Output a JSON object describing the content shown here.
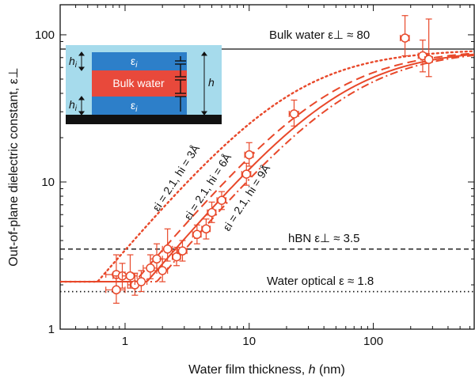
{
  "chart_data": {
    "type": "scatter",
    "title": "",
    "xlabel_prefix": "Water film thickness, ",
    "xlabel_var": "h",
    "xlabel_unit": " (nm)",
    "ylabel": "Out-of-plane dielectric constant, ε⊥",
    "x_scale": "log",
    "y_scale": "log",
    "xlim": [
      0.3,
      650
    ],
    "ylim": [
      1,
      160
    ],
    "x_ticks": [
      {
        "value": 1,
        "label": "1"
      },
      {
        "value": 10,
        "label": "10"
      },
      {
        "value": 100,
        "label": "100"
      }
    ],
    "y_ticks": [
      {
        "value": 1,
        "label": "1"
      },
      {
        "value": 10,
        "label": "10"
      },
      {
        "value": 100,
        "label": "100"
      }
    ],
    "reference_lines": [
      {
        "name": "bulk-water",
        "value": 80,
        "style": "solid",
        "label": "Bulk water ε⊥ ≈ 80"
      },
      {
        "name": "hbn",
        "value": 3.5,
        "style": "dashed",
        "label": "hBN ε⊥ ≈ 3.5"
      },
      {
        "name": "water-optical",
        "value": 1.8,
        "style": "dotted",
        "label": "Water optical ε ≈ 1.8"
      }
    ],
    "model": {
      "eps_interface": 2.1,
      "eps_bulk": 80
    },
    "series": [
      {
        "name": "model hi = 3Å",
        "style": "dotted",
        "hi_nm": 0.3,
        "label": "εi = 2.1, hi = 3Å"
      },
      {
        "name": "model hi = 6Å",
        "style": "dashed",
        "hi_nm": 0.6,
        "label": "εi = 2.1, hi = 6Å"
      },
      {
        "name": "model hi = 7.5Å",
        "style": "solid",
        "hi_nm": 0.75,
        "label": ""
      },
      {
        "name": "model hi = 9Å",
        "style": "dashdot",
        "hi_nm": 0.9,
        "label": "εi = 2.1, hi = 9Å"
      }
    ],
    "points": [
      {
        "x": 0.85,
        "y": 2.35,
        "ylo": 1.8,
        "yhi": 3.2,
        "xerr": 0.15
      },
      {
        "x": 0.85,
        "y": 1.85,
        "ylo": 1.5,
        "yhi": 2.3,
        "xerr": 0.15
      },
      {
        "x": 0.95,
        "y": 2.3,
        "ylo": 1.9,
        "yhi": 2.8,
        "xerr": 0.15
      },
      {
        "x": 1.1,
        "y": 2.3,
        "ylo": 1.9,
        "yhi": 3.2,
        "xerr": 0.15
      },
      {
        "x": 1.2,
        "y": 2.0,
        "ylo": 1.7,
        "yhi": 2.4,
        "xerr": 0.15
      },
      {
        "x": 1.35,
        "y": 2.1,
        "ylo": 1.8,
        "yhi": 2.5,
        "xerr": 0.15
      },
      {
        "x": 1.6,
        "y": 2.6,
        "ylo": 2.2,
        "yhi": 3.2,
        "xerr": 0.2
      },
      {
        "x": 1.8,
        "y": 3.0,
        "ylo": 2.5,
        "yhi": 3.8,
        "xerr": 0.2
      },
      {
        "x": 2.0,
        "y": 2.5,
        "ylo": 2.1,
        "yhi": 3.0,
        "xerr": 0.2
      },
      {
        "x": 2.2,
        "y": 3.5,
        "ylo": 2.9,
        "yhi": 4.8,
        "xerr": 0.2
      },
      {
        "x": 2.6,
        "y": 3.1,
        "ylo": 2.7,
        "yhi": 3.6,
        "xerr": 0.2
      },
      {
        "x": 2.9,
        "y": 3.4,
        "ylo": 2.9,
        "yhi": 4.0,
        "xerr": 0.25
      },
      {
        "x": 3.8,
        "y": 4.4,
        "ylo": 3.8,
        "yhi": 5.1,
        "xerr": 0.3
      },
      {
        "x": 4.5,
        "y": 4.8,
        "ylo": 4.1,
        "yhi": 5.6,
        "xerr": 0.35
      },
      {
        "x": 5.0,
        "y": 6.2,
        "ylo": 5.3,
        "yhi": 7.3,
        "xerr": 0.4
      },
      {
        "x": 6.0,
        "y": 7.5,
        "ylo": 6.5,
        "yhi": 8.6,
        "xerr": 0.5
      },
      {
        "x": 9.5,
        "y": 11.3,
        "ylo": 9.5,
        "yhi": 13.4,
        "xerr": 0.8
      },
      {
        "x": 10.0,
        "y": 15.3,
        "ylo": 12.8,
        "yhi": 18.5,
        "xerr": 0.8
      },
      {
        "x": 23,
        "y": 29,
        "ylo": 24,
        "yhi": 36,
        "xerr": 2
      },
      {
        "x": 180,
        "y": 95,
        "ylo": 72,
        "yhi": 135,
        "xerr": 15
      },
      {
        "x": 250,
        "y": 72,
        "ylo": 56,
        "yhi": 92,
        "xerr": 20
      },
      {
        "x": 280,
        "y": 68,
        "ylo": 52,
        "yhi": 128,
        "xerr": 20
      }
    ],
    "inset": {
      "h_label": "h",
      "hi_label": "h",
      "hi_sub": "i",
      "eps_label": "ε",
      "eps_sub": "i",
      "bulk_label": "Bulk water"
    },
    "colors": {
      "data": "#e8482a",
      "inset_sky": "#a6dbec",
      "inset_blue": "#2d7fc9",
      "inset_red": "#e8493b",
      "inset_base": "#111111"
    }
  }
}
